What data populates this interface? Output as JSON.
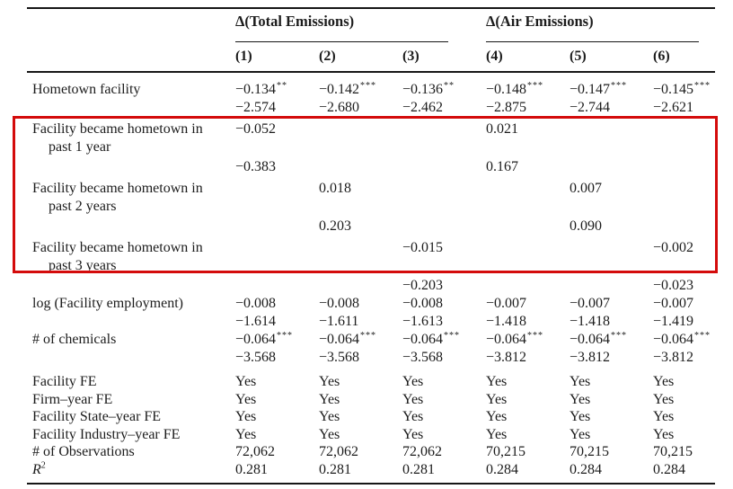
{
  "page": {
    "background": "#ffffff",
    "text_color": "#1c1c1c",
    "highlight_color": "#d40b0b"
  },
  "table": {
    "spanners": [
      {
        "label": "Δ(Total Emissions)",
        "columns": "(1)–(3)"
      },
      {
        "label": "Δ(Air Emissions)",
        "columns": "(4)–(6)"
      }
    ],
    "column_headers": [
      "(1)",
      "(2)",
      "(3)",
      "(4)",
      "(5)",
      "(6)"
    ],
    "rows": [
      {
        "type": "coef",
        "label": "Hometown facility",
        "cells": [
          {
            "v": "−0.134",
            "s": "**"
          },
          {
            "v": "−0.142",
            "s": "***"
          },
          {
            "v": "−0.136",
            "s": "**"
          },
          {
            "v": "−0.148",
            "s": "***"
          },
          {
            "v": "−0.147",
            "s": "***"
          },
          {
            "v": "−0.145",
            "s": "***"
          }
        ]
      },
      {
        "type": "tstat",
        "cells": [
          "−2.574",
          "−2.680",
          "−2.462",
          "−2.875",
          "−2.744",
          "−2.621"
        ]
      },
      {
        "type": "coef",
        "label": "Facility became hometown in",
        "label2": "past 1 year",
        "cells": [
          "−0.052",
          "",
          "",
          "0.021",
          "",
          ""
        ]
      },
      {
        "type": "tstat",
        "cells": [
          "−0.383",
          "",
          "",
          "0.167",
          "",
          ""
        ]
      },
      {
        "type": "coef",
        "label": "Facility became hometown in",
        "label2": "past 2 years",
        "cells": [
          "",
          "0.018",
          "",
          "",
          "0.007",
          ""
        ]
      },
      {
        "type": "tstat",
        "cells": [
          "",
          "0.203",
          "",
          "",
          "0.090",
          ""
        ]
      },
      {
        "type": "coef",
        "label": "Facility became hometown in",
        "label2": "past 3 years",
        "cells": [
          "",
          "",
          "−0.015",
          "",
          "",
          "−0.002"
        ]
      },
      {
        "type": "tstat",
        "cells": [
          "",
          "",
          "−0.203",
          "",
          "",
          "−0.023"
        ]
      },
      {
        "type": "coef",
        "label": "log (Facility employment)",
        "cells": [
          "−0.008",
          "−0.008",
          "−0.008",
          "−0.007",
          "−0.007",
          "−0.007"
        ]
      },
      {
        "type": "tstat",
        "cells": [
          "−1.614",
          "−1.611",
          "−1.613",
          "−1.418",
          "−1.418",
          "−1.419"
        ]
      },
      {
        "type": "coef",
        "label": "# of chemicals",
        "cells": [
          {
            "v": "−0.064",
            "s": "***"
          },
          {
            "v": "−0.064",
            "s": "***"
          },
          {
            "v": "−0.064",
            "s": "***"
          },
          {
            "v": "−0.064",
            "s": "***"
          },
          {
            "v": "−0.064",
            "s": "***"
          },
          {
            "v": "−0.064",
            "s": "***"
          }
        ]
      },
      {
        "type": "tstat",
        "cells": [
          "−3.568",
          "−3.568",
          "−3.568",
          "−3.812",
          "−3.812",
          "−3.812"
        ]
      },
      {
        "type": "info",
        "label": "Facility FE",
        "cells": [
          "Yes",
          "Yes",
          "Yes",
          "Yes",
          "Yes",
          "Yes"
        ]
      },
      {
        "type": "info",
        "label": "Firm–year FE",
        "cells": [
          "Yes",
          "Yes",
          "Yes",
          "Yes",
          "Yes",
          "Yes"
        ]
      },
      {
        "type": "info",
        "label": "Facility State–year FE",
        "cells": [
          "Yes",
          "Yes",
          "Yes",
          "Yes",
          "Yes",
          "Yes"
        ]
      },
      {
        "type": "info",
        "label": "Facility Industry–year FE",
        "cells": [
          "Yes",
          "Yes",
          "Yes",
          "Yes",
          "Yes",
          "Yes"
        ]
      },
      {
        "type": "info",
        "label": "# of Observations",
        "cells": [
          "72,062",
          "72,062",
          "72,062",
          "70,215",
          "70,215",
          "70,215"
        ]
      },
      {
        "type": "info",
        "label": "R",
        "label_sup": "2",
        "cells": [
          "0.281",
          "0.281",
          "0.281",
          "0.284",
          "0.284",
          "0.284"
        ]
      }
    ],
    "highlight_note": "red box encloses the three 'Facility became hometown in past N year(s)' coefficient rows"
  }
}
